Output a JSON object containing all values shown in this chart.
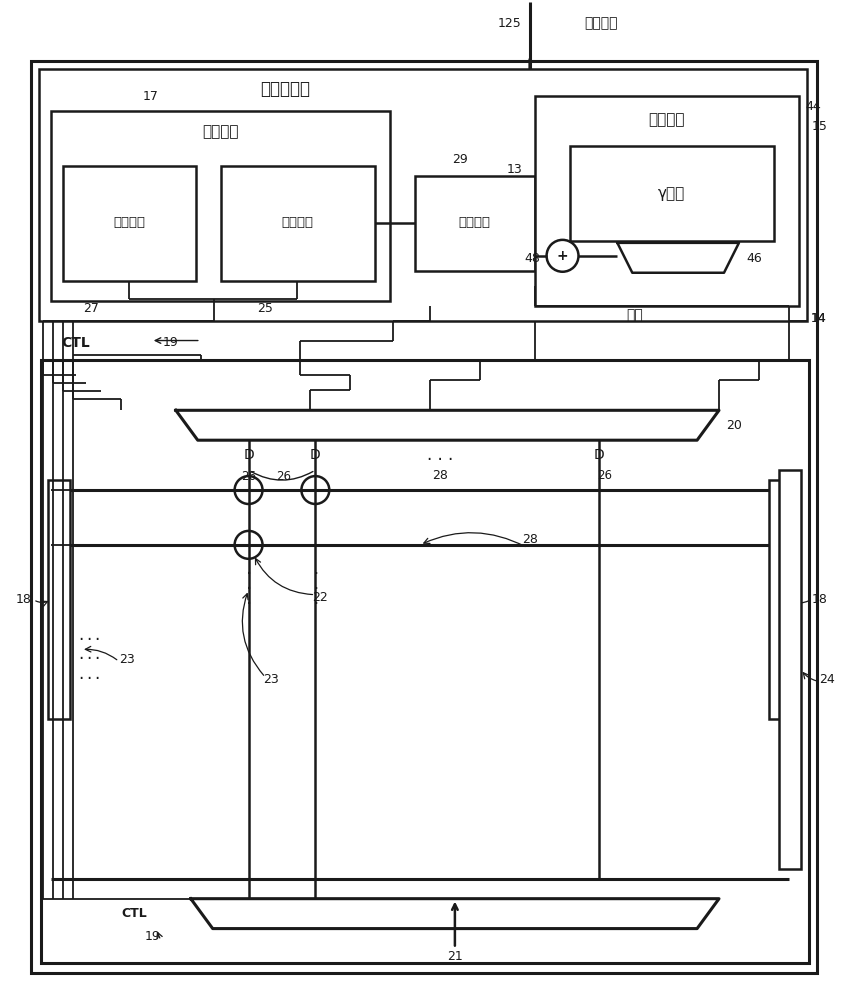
{
  "bg_color": "#ffffff",
  "line_color": "#1a1a1a",
  "fig_width": 8.44,
  "fig_height": 10.0,
  "labels": {
    "image_data": "图像数据",
    "driver_circuit": "驱动器电路",
    "data_circuit": "数据电路",
    "comp_circuit": "补偿电路",
    "bias_circuit": "偏压电路",
    "sense_circuit": "感测电路",
    "memory": "存储装置",
    "gamma": "γ电路",
    "data": "数据",
    "ctl": "CTL",
    "D": "D"
  }
}
